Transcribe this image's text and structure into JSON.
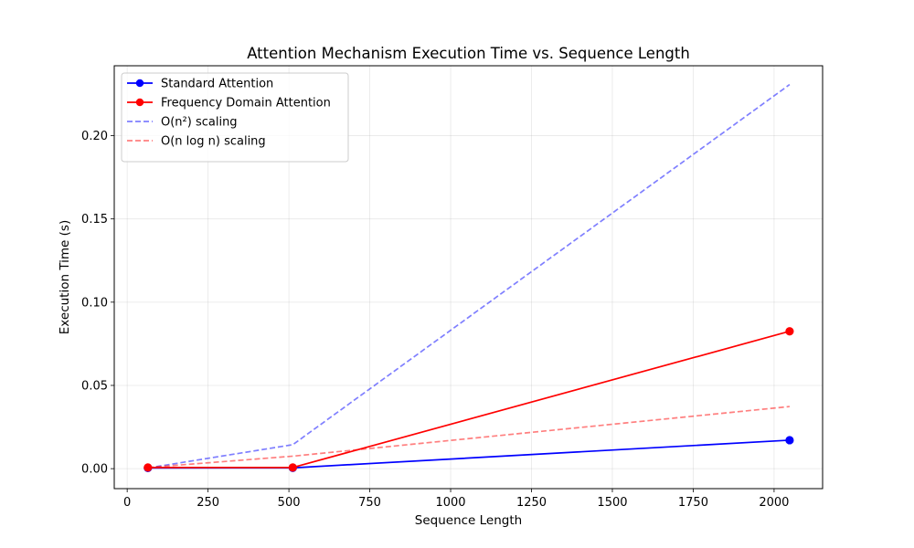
{
  "chart_data": {
    "type": "line",
    "title": "Attention Mechanism Execution Time vs. Sequence Length",
    "xlabel": "Sequence Length",
    "ylabel": "Execution Time (s)",
    "xlim": [
      -40,
      2150
    ],
    "ylim": [
      -0.012,
      0.242
    ],
    "xticks": [
      0,
      250,
      500,
      750,
      1000,
      1250,
      1500,
      1750,
      2000
    ],
    "xtick_labels": [
      "0",
      "250",
      "500",
      "750",
      "1000",
      "1250",
      "1500",
      "1750",
      "2000"
    ],
    "yticks": [
      0.0,
      0.05,
      0.1,
      0.15,
      0.2
    ],
    "ytick_labels": [
      "0.00",
      "0.05",
      "0.10",
      "0.15",
      "0.20"
    ],
    "grid": true,
    "legend_position": "top-left",
    "series": [
      {
        "name": "Standard Attention",
        "color": "#0000ff",
        "style": "solid",
        "marker": "circle",
        "x": [
          64,
          512,
          2048
        ],
        "values": [
          0.0004,
          0.0005,
          0.0171
        ]
      },
      {
        "name": "Frequency Domain Attention",
        "color": "#ff0000",
        "style": "solid",
        "marker": "circle",
        "x": [
          64,
          512,
          2048
        ],
        "values": [
          0.0007,
          0.0007,
          0.0825
        ]
      },
      {
        "name": "O(n²) scaling",
        "color": "#0000ff",
        "style": "dashed",
        "opacity": 0.5,
        "marker": "none",
        "x": [
          64,
          512,
          2048
        ],
        "values": [
          0.0004,
          0.0144,
          0.2307
        ]
      },
      {
        "name": "O(n log n) scaling",
        "color": "#ff0000",
        "style": "dashed",
        "opacity": 0.5,
        "marker": "none",
        "x": [
          64,
          512,
          2048
        ],
        "values": [
          0.0007,
          0.0075,
          0.0373
        ]
      }
    ]
  }
}
